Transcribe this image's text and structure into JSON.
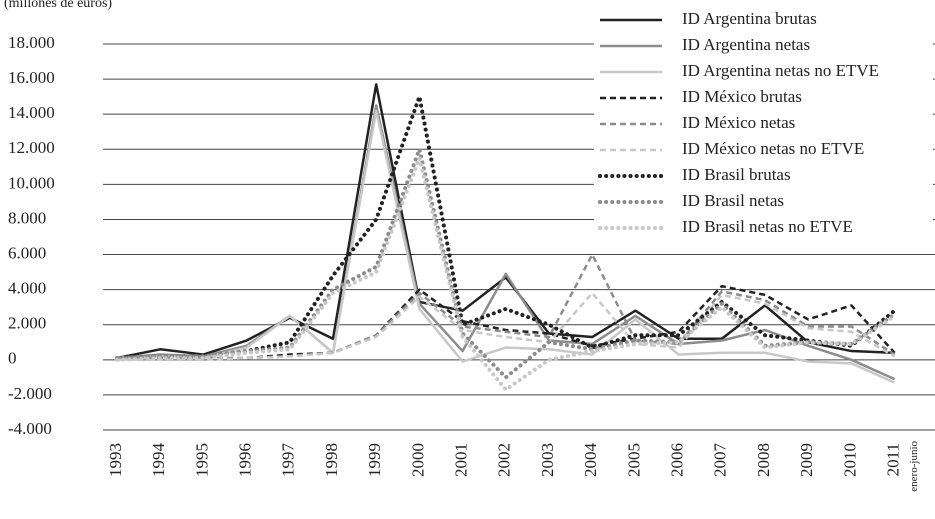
{
  "chart_data": {
    "type": "line",
    "y_label": "(millones de euros)",
    "categories": [
      "1993",
      "1994",
      "1995",
      "1996",
      "1997",
      "1998",
      "1999",
      "2000",
      "2001",
      "2002",
      "2003",
      "2004",
      "2005",
      "2006",
      "2007",
      "2008",
      "2009",
      "2010",
      "2011"
    ],
    "last_category_note": "enero-junio",
    "ylim": [
      -4000,
      18000
    ],
    "yticks": [
      {
        "value": -4000,
        "label": "-4.000"
      },
      {
        "value": -2000,
        "label": "-2.000"
      },
      0,
      {
        "value": 2000,
        "label": "2.000"
      },
      {
        "value": 4000,
        "label": "4.000"
      },
      {
        "value": 6000,
        "label": "6.000"
      },
      {
        "value": 8000,
        "label": "8.000"
      },
      {
        "value": 10000,
        "label": "10.000"
      },
      {
        "value": 12000,
        "label": "12.000"
      },
      {
        "value": 14000,
        "label": "14.000"
      },
      {
        "value": 16000,
        "label": "16.000"
      },
      {
        "value": 18000,
        "label": "18.000"
      }
    ],
    "grid": true,
    "legend": "top-right",
    "series": [
      {
        "name": "ID Argentina brutas",
        "color": "#222222",
        "dash": "solid",
        "values": [
          100,
          600,
          300,
          1100,
          2400,
          1200,
          15700,
          3300,
          2800,
          4700,
          1500,
          1300,
          2800,
          1200,
          1200,
          3100,
          1000,
          500,
          400
        ]
      },
      {
        "name": "ID Argentina netas",
        "color": "#8c8c8c",
        "dash": "solid",
        "values": [
          100,
          300,
          200,
          800,
          2500,
          400,
          14500,
          3200,
          500,
          4900,
          1100,
          900,
          2500,
          900,
          1100,
          1700,
          800,
          0,
          -1100
        ]
      },
      {
        "name": "ID Argentina netas no ETVE",
        "color": "#c8c8c8",
        "dash": "solid",
        "values": [
          0,
          200,
          100,
          700,
          2500,
          400,
          14200,
          2900,
          -100,
          700,
          600,
          300,
          2300,
          300,
          400,
          400,
          -100,
          -200,
          -1300
        ]
      },
      {
        "name": "ID México brutas",
        "color": "#222222",
        "dash": "dashed",
        "values": [
          0,
          100,
          100,
          100,
          300,
          400,
          1400,
          4000,
          2200,
          1700,
          1500,
          800,
          1200,
          1600,
          4200,
          3700,
          2300,
          3100,
          400
        ]
      },
      {
        "name": "ID México netas",
        "color": "#8c8c8c",
        "dash": "dashed",
        "values": [
          0,
          100,
          100,
          100,
          200,
          400,
          1400,
          3800,
          1900,
          1600,
          1300,
          6000,
          1100,
          900,
          3900,
          3400,
          1900,
          1900,
          300
        ]
      },
      {
        "name": "ID México netas no ETVE",
        "color": "#c8c8c8",
        "dash": "dashed",
        "values": [
          0,
          0,
          0,
          100,
          200,
          400,
          1300,
          3600,
          1700,
          1300,
          1000,
          3800,
          900,
          700,
          3700,
          3200,
          1800,
          1600,
          200
        ]
      },
      {
        "name": "ID Brasil brutas",
        "color": "#222222",
        "dash": "dotted",
        "values": [
          100,
          200,
          200,
          500,
          1000,
          4800,
          8000,
          15000,
          2000,
          2900,
          2000,
          700,
          1400,
          1400,
          3300,
          1400,
          1100,
          800,
          2800
        ]
      },
      {
        "name": "ID Brasil netas",
        "color": "#8c8c8c",
        "dash": "dotted",
        "values": [
          100,
          200,
          200,
          500,
          700,
          4000,
          5300,
          12000,
          1500,
          -1000,
          1000,
          600,
          1100,
          1000,
          3200,
          800,
          1000,
          900,
          2600
        ]
      },
      {
        "name": "ID Brasil netas no ETVE",
        "color": "#c8c8c8",
        "dash": "dotted",
        "values": [
          0,
          100,
          100,
          400,
          600,
          3800,
          5000,
          11500,
          1300,
          -1700,
          0,
          500,
          900,
          1000,
          3000,
          700,
          1000,
          900,
          2500
        ]
      }
    ]
  }
}
